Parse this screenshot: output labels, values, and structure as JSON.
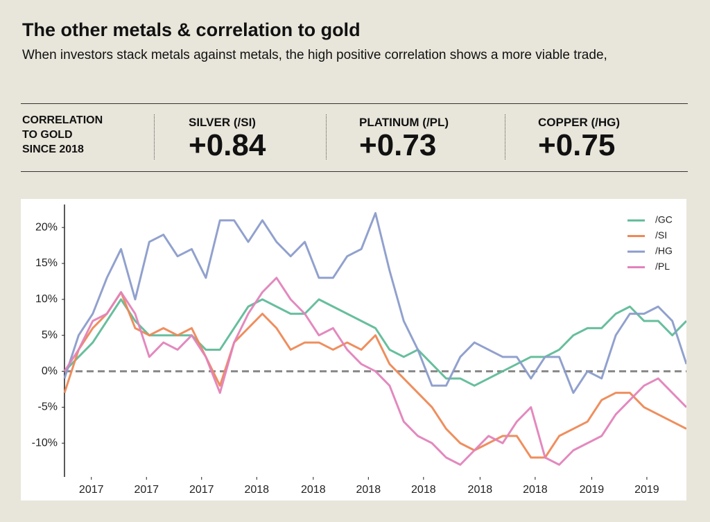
{
  "header": {
    "title": "The other metals & correlation to gold",
    "subtitle": "When investors stack metals against metals, the high positive correlation shows a more viable trade,"
  },
  "stats": {
    "caption": [
      "CORRELATION",
      "TO GOLD",
      "SINCE 2018"
    ],
    "items": [
      {
        "label": "SILVER (/SI)",
        "value": "+0.84"
      },
      {
        "label": "PLATINUM (/PL)",
        "value": "+0.73"
      },
      {
        "label": "COPPER (/HG)",
        "value": "+0.75"
      }
    ]
  },
  "chart_data": {
    "type": "line",
    "x": [
      0,
      1,
      2,
      3,
      4,
      5,
      6,
      7,
      8,
      9,
      10,
      11,
      12,
      13,
      14,
      15,
      16,
      17,
      18,
      19,
      20,
      21,
      22,
      23,
      24,
      25,
      26,
      27,
      28,
      29,
      30,
      31,
      32,
      33,
      34,
      35,
      36,
      37,
      38,
      39,
      40,
      41,
      42,
      43,
      44
    ],
    "xlim": [
      0,
      44
    ],
    "xticks": [
      {
        "value": 1.9,
        "label": "2017"
      },
      {
        "value": 5.8,
        "label": "2017"
      },
      {
        "value": 9.7,
        "label": "2017"
      },
      {
        "value": 13.6,
        "label": "2018"
      },
      {
        "value": 17.6,
        "label": "2018"
      },
      {
        "value": 21.5,
        "label": "2018"
      },
      {
        "value": 25.4,
        "label": "2018"
      },
      {
        "value": 29.4,
        "label": "2018"
      },
      {
        "value": 33.3,
        "label": "2018"
      },
      {
        "value": 37.3,
        "label": "2019"
      },
      {
        "value": 41.2,
        "label": "2019"
      }
    ],
    "ylim": [
      -14.7,
      23.2
    ],
    "yticks": [
      {
        "value": -10,
        "label": "-10%"
      },
      {
        "value": -5,
        "label": "-5%"
      },
      {
        "value": 0,
        "label": "0%"
      },
      {
        "value": 5,
        "label": "5%"
      },
      {
        "value": 10,
        "label": "10%"
      },
      {
        "value": 15,
        "label": "15%"
      },
      {
        "value": 20,
        "label": "20%"
      }
    ],
    "hline": 0,
    "legend": "upper right",
    "series": [
      {
        "name": "/GC",
        "color": "#5fba98",
        "values": [
          0,
          2,
          4,
          7,
          10,
          7,
          5,
          5,
          5,
          5,
          3,
          3,
          6,
          9,
          10,
          9,
          8,
          8,
          10,
          9,
          8,
          7,
          6,
          3,
          2,
          3,
          1,
          -1,
          -1,
          -2,
          -1,
          0,
          1,
          2,
          2,
          3,
          5,
          6,
          6,
          8,
          9,
          7,
          7,
          5,
          7
        ]
      },
      {
        "name": "/SI",
        "color": "#ee8855",
        "values": [
          -3,
          3,
          6,
          8,
          11,
          6,
          5,
          6,
          5,
          6,
          2,
          -2,
          4,
          6,
          8,
          6,
          3,
          4,
          4,
          3,
          4,
          3,
          5,
          1,
          -1,
          -3,
          -5,
          -8,
          -10,
          -11,
          -10,
          -9,
          -9,
          -12,
          -12,
          -9,
          -8,
          -7,
          -4,
          -3,
          -3,
          -5,
          -6,
          -7,
          -8
        ]
      },
      {
        "name": "/HG",
        "color": "#8b9ccb",
        "values": [
          -1,
          5,
          8,
          13,
          17,
          10,
          18,
          19,
          16,
          17,
          13,
          21,
          21,
          18,
          21,
          18,
          16,
          18,
          13,
          13,
          16,
          17,
          22,
          14,
          7,
          3,
          -2,
          -2,
          2,
          4,
          3,
          2,
          2,
          -1,
          2,
          2,
          -3,
          0,
          -1,
          5,
          8,
          8,
          9,
          7,
          1
        ]
      },
      {
        "name": "/PL",
        "color": "#e283bb",
        "values": [
          0,
          3,
          7,
          8,
          11,
          8,
          2,
          4,
          3,
          5,
          2,
          -3,
          4,
          8,
          11,
          13,
          10,
          8,
          5,
          6,
          3,
          1,
          0,
          -2,
          -7,
          -9,
          -10,
          -12,
          -13,
          -11,
          -9,
          -10,
          -7,
          -5,
          -12,
          -13,
          -11,
          -10,
          -9,
          -6,
          -4,
          -2,
          -1,
          -3,
          -5
        ]
      }
    ]
  }
}
